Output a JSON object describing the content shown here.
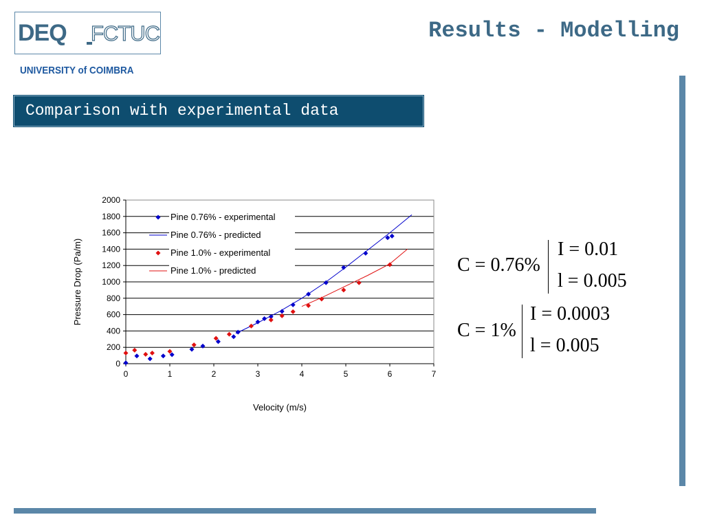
{
  "header": {
    "logo": {
      "deq": "DEQ",
      "fctuc": "FCTUC"
    },
    "university": "UNIVERSITY of COIMBRA",
    "title": "Results - Modelling"
  },
  "section": {
    "label": "Comparison with experimental data"
  },
  "equations": [
    {
      "c": "C = 0.76%",
      "i": "I = 0.01",
      "l": "l = 0.005"
    },
    {
      "c": "C = 1%",
      "i": "I = 0.0003",
      "l": "l = 0.005"
    }
  ],
  "colors": {
    "accent": "#5b87a8",
    "banner": "#0e4d6f",
    "university": "#1e59a0",
    "series_blue": "#0000cc",
    "series_red": "#e01010"
  },
  "chart_data": {
    "type": "scatter",
    "title": "",
    "xlabel": "Velocity (m/s)",
    "ylabel": "Pressure Drop (Pa/m)",
    "xlim": [
      0,
      7
    ],
    "ylim": [
      0,
      2000
    ],
    "xticks": [
      0,
      1,
      2,
      3,
      4,
      5,
      6,
      7
    ],
    "yticks": [
      0,
      200,
      400,
      600,
      800,
      1000,
      1200,
      1400,
      1600,
      1800,
      2000
    ],
    "grid": "horizontal",
    "legend_position": "top-left",
    "series": [
      {
        "name": "Pine 0.76% - experimental",
        "kind": "markers",
        "color": "#0000cc",
        "points": [
          [
            0,
            10
          ],
          [
            0.25,
            95
          ],
          [
            0.55,
            60
          ],
          [
            0.85,
            95
          ],
          [
            1.05,
            110
          ],
          [
            1.5,
            175
          ],
          [
            1.75,
            215
          ],
          [
            2.1,
            270
          ],
          [
            2.45,
            330
          ],
          [
            2.55,
            385
          ],
          [
            3.0,
            510
          ],
          [
            3.15,
            550
          ],
          [
            3.3,
            575
          ],
          [
            3.55,
            640
          ],
          [
            3.8,
            720
          ],
          [
            4.15,
            850
          ],
          [
            4.55,
            990
          ],
          [
            4.95,
            1175
          ],
          [
            5.45,
            1350
          ],
          [
            5.95,
            1540
          ],
          [
            6.05,
            1560
          ]
        ]
      },
      {
        "name": "Pine 0.76% - predicted",
        "kind": "line",
        "color": "#0000cc",
        "points": [
          [
            2.5,
            370
          ],
          [
            3.0,
            500
          ],
          [
            3.5,
            640
          ],
          [
            4.0,
            800
          ],
          [
            4.5,
            980
          ],
          [
            5.0,
            1180
          ],
          [
            5.5,
            1390
          ],
          [
            6.0,
            1600
          ],
          [
            6.5,
            1820
          ]
        ]
      },
      {
        "name": "Pine 1.0% - experimental",
        "kind": "markers",
        "color": "#e01010",
        "points": [
          [
            0,
            130
          ],
          [
            0.2,
            165
          ],
          [
            0.45,
            115
          ],
          [
            0.6,
            130
          ],
          [
            1.0,
            150
          ],
          [
            1.55,
            230
          ],
          [
            2.05,
            310
          ],
          [
            2.35,
            360
          ],
          [
            2.85,
            460
          ],
          [
            3.3,
            535
          ],
          [
            3.55,
            585
          ],
          [
            3.8,
            635
          ],
          [
            4.15,
            710
          ],
          [
            4.45,
            790
          ],
          [
            4.95,
            900
          ],
          [
            5.3,
            990
          ],
          [
            6.0,
            1210
          ]
        ]
      },
      {
        "name": "Pine 1.0% - predicted",
        "kind": "line",
        "color": "#e01010",
        "points": [
          [
            4.0,
            700
          ],
          [
            4.5,
            820
          ],
          [
            5.0,
            950
          ],
          [
            5.5,
            1080
          ],
          [
            6.0,
            1220
          ],
          [
            6.4,
            1400
          ]
        ]
      }
    ]
  }
}
